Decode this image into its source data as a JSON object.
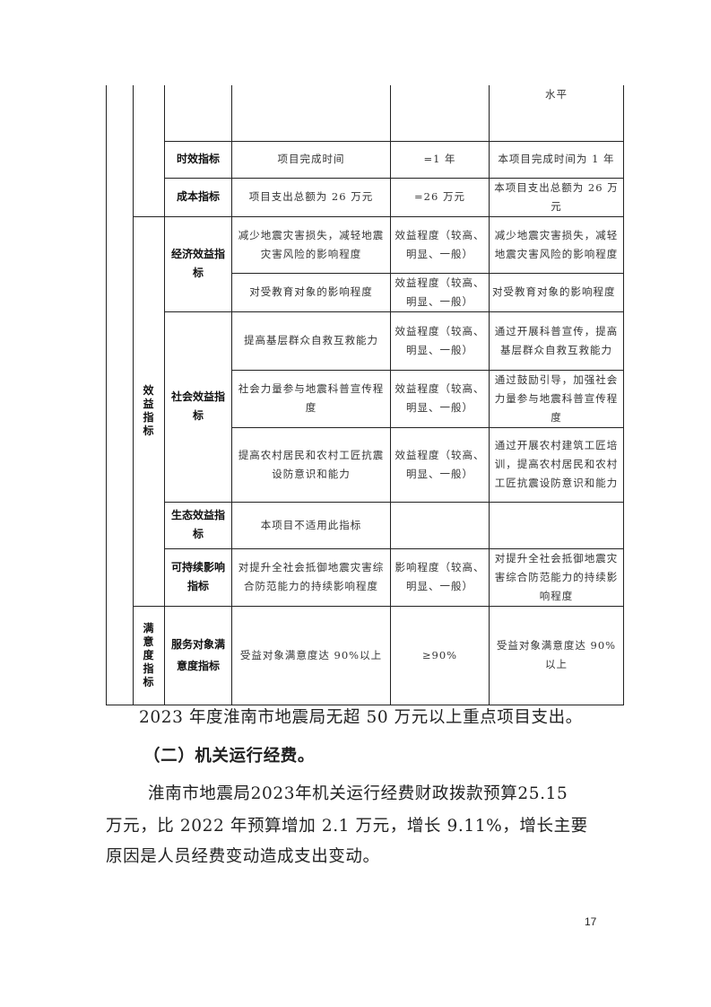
{
  "table": {
    "continued_row": {
      "standard_tail": "水平"
    },
    "timeliness": {
      "label": "时效指标",
      "indicator": "项目完成时间",
      "value": "=1 年",
      "standard": "本项目完成时间为 1 年"
    },
    "cost": {
      "label": "成本指标",
      "indicator": "项目支出总额为 26 万元",
      "value": "=26 万元",
      "standard": "本项目支出总额为 26 万元"
    },
    "benefit_category": "效益指标",
    "economic": {
      "label": "经济效益指标",
      "rows": [
        {
          "indicator": "减少地震灾害损失，减轻地震灾害风险的影响程度",
          "value": "效益程度（较高、明显、一般）",
          "standard": "减少地震灾害损失，减轻地震灾害风险的影响程度"
        },
        {
          "indicator": "对受教育对象的影响程度",
          "value": "效益程度（较高、明显、一般）",
          "standard": "对受教育对象的影响程度"
        }
      ]
    },
    "social": {
      "label": "社会效益指标",
      "rows": [
        {
          "indicator": "提高基层群众自救互救能力",
          "value": "效益程度（较高、明显、一般）",
          "standard": "通过开展科普宣传，提高基层群众自救互救能力"
        },
        {
          "indicator": "社会力量参与地震科普宣传程度",
          "value": "效益程度（较高、明显、一般）",
          "standard": "通过鼓励引导，加强社会力量参与地震科普宣传程度"
        },
        {
          "indicator": "提高农村居民和农村工匠抗震设防意识和能力",
          "value": "效益程度（较高、明显、一般）",
          "standard": "通过开展农村建筑工匠培训，提高农村居民和农村工匠抗震设防意识和能力"
        }
      ]
    },
    "ecological": {
      "label": "生态效益指标",
      "indicator": "本项目不适用此指标",
      "value": "",
      "standard": ""
    },
    "sustainable": {
      "label": "可持续影响指标",
      "indicator": "对提升全社会抵御地震灾害综合防范能力的持续影响程度",
      "value": "影响程度（较高、明显、一般）",
      "standard": "对提升全社会抵御地震灾害综合防范能力的持续影响程度"
    },
    "satisfaction_category": "满意度指标",
    "satisfaction": {
      "label": "服务对象满意度指标",
      "indicator": "受益对象满意度达 90%以上",
      "value": "≥90%",
      "standard": "受益对象满意度达 90%以上"
    }
  },
  "body": {
    "line1": "2023 年度淮南市地震局无超 50 万元以上重点项目支出。",
    "heading": "（二）机关运行经费。",
    "para_lines": [
      "淮南市地震局2023年机关运行经费财政拨款预算25.15",
      "万元，比 2022 年预算增加 2.1 万元，增长 9.11%，增长主要",
      "原因是人员经费变动造成支出变动。"
    ]
  },
  "page_number": "17"
}
